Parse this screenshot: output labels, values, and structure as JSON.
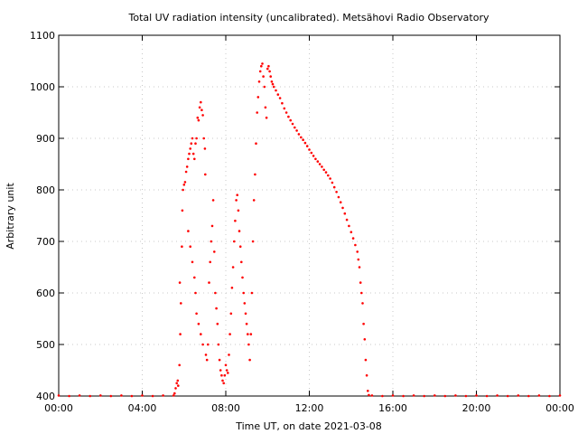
{
  "chart_data": {
    "type": "scatter",
    "title": "Total UV radiation intensity (uncalibrated). Metsähovi Radio Observatory",
    "xlabel": "Time UT, on date 2021-03-08",
    "ylabel": "Arbitrary unit",
    "xlim": [
      0,
      24
    ],
    "ylim": [
      400,
      1100
    ],
    "x_ticks": [
      {
        "value": 0,
        "label": "00:00"
      },
      {
        "value": 4,
        "label": "04:00"
      },
      {
        "value": 8,
        "label": "08:00"
      },
      {
        "value": 12,
        "label": "12:00"
      },
      {
        "value": 16,
        "label": "16:00"
      },
      {
        "value": 20,
        "label": "20:00"
      },
      {
        "value": 24,
        "label": "00:00"
      }
    ],
    "y_ticks": [
      {
        "value": 400,
        "label": "400"
      },
      {
        "value": 500,
        "label": "500"
      },
      {
        "value": 600,
        "label": "600"
      },
      {
        "value": 700,
        "label": "700"
      },
      {
        "value": 800,
        "label": "800"
      },
      {
        "value": 900,
        "label": "900"
      },
      {
        "value": 1000,
        "label": "1000"
      },
      {
        "value": 1100,
        "label": "1100"
      }
    ],
    "grid": true,
    "marker_color": "#ff0000",
    "series": [
      {
        "x_unit": "hours UT",
        "points": [
          [
            0.0,
            401
          ],
          [
            0.5,
            400
          ],
          [
            1.0,
            401
          ],
          [
            1.5,
            400
          ],
          [
            2.0,
            401
          ],
          [
            2.5,
            400
          ],
          [
            3.0,
            401
          ],
          [
            3.5,
            400
          ],
          [
            4.0,
            401
          ],
          [
            4.5,
            400
          ],
          [
            5.0,
            401
          ],
          [
            5.5,
            401
          ],
          [
            5.55,
            405
          ],
          [
            5.6,
            415
          ],
          [
            5.65,
            425
          ],
          [
            5.7,
            430
          ],
          [
            5.72,
            420
          ],
          [
            5.78,
            460
          ],
          [
            5.8,
            620
          ],
          [
            5.82,
            520
          ],
          [
            5.85,
            580
          ],
          [
            5.9,
            690
          ],
          [
            5.92,
            760
          ],
          [
            5.95,
            800
          ],
          [
            6.0,
            810
          ],
          [
            6.05,
            815
          ],
          [
            6.1,
            835
          ],
          [
            6.15,
            845
          ],
          [
            6.2,
            860
          ],
          [
            6.25,
            870
          ],
          [
            6.3,
            880
          ],
          [
            6.35,
            890
          ],
          [
            6.4,
            900
          ],
          [
            6.45,
            870
          ],
          [
            6.5,
            860
          ],
          [
            6.55,
            890
          ],
          [
            6.6,
            900
          ],
          [
            6.65,
            940
          ],
          [
            6.7,
            935
          ],
          [
            6.75,
            960
          ],
          [
            6.8,
            970
          ],
          [
            6.85,
            955
          ],
          [
            6.9,
            945
          ],
          [
            6.95,
            900
          ],
          [
            7.0,
            880
          ],
          [
            7.02,
            830
          ],
          [
            6.2,
            720
          ],
          [
            6.3,
            690
          ],
          [
            6.4,
            660
          ],
          [
            6.5,
            630
          ],
          [
            6.55,
            600
          ],
          [
            6.6,
            560
          ],
          [
            6.7,
            540
          ],
          [
            6.8,
            520
          ],
          [
            6.9,
            500
          ],
          [
            7.05,
            480
          ],
          [
            7.1,
            470
          ],
          [
            7.15,
            500
          ],
          [
            7.2,
            620
          ],
          [
            7.25,
            660
          ],
          [
            7.3,
            700
          ],
          [
            7.35,
            730
          ],
          [
            7.4,
            780
          ],
          [
            7.45,
            680
          ],
          [
            7.5,
            600
          ],
          [
            7.55,
            570
          ],
          [
            7.6,
            540
          ],
          [
            7.65,
            500
          ],
          [
            7.7,
            470
          ],
          [
            7.75,
            450
          ],
          [
            7.8,
            440
          ],
          [
            7.85,
            430
          ],
          [
            7.9,
            425
          ],
          [
            7.95,
            440
          ],
          [
            8.0,
            460
          ],
          [
            8.05,
            450
          ],
          [
            8.1,
            445
          ],
          [
            8.15,
            480
          ],
          [
            8.2,
            520
          ],
          [
            8.25,
            560
          ],
          [
            8.3,
            610
          ],
          [
            8.35,
            650
          ],
          [
            8.4,
            700
          ],
          [
            8.45,
            740
          ],
          [
            8.5,
            780
          ],
          [
            8.55,
            790
          ],
          [
            8.6,
            760
          ],
          [
            8.65,
            720
          ],
          [
            8.7,
            690
          ],
          [
            8.75,
            660
          ],
          [
            8.8,
            630
          ],
          [
            8.85,
            600
          ],
          [
            8.9,
            580
          ],
          [
            8.95,
            560
          ],
          [
            9.0,
            540
          ],
          [
            9.05,
            520
          ],
          [
            9.1,
            500
          ],
          [
            9.15,
            470
          ],
          [
            9.2,
            520
          ],
          [
            9.25,
            600
          ],
          [
            9.3,
            700
          ],
          [
            9.35,
            780
          ],
          [
            9.4,
            830
          ],
          [
            9.45,
            890
          ],
          [
            9.5,
            950
          ],
          [
            9.55,
            980
          ],
          [
            9.6,
            1010
          ],
          [
            9.65,
            1030
          ],
          [
            9.7,
            1040
          ],
          [
            9.75,
            1045
          ],
          [
            9.8,
            1020
          ],
          [
            9.85,
            1000
          ],
          [
            9.9,
            960
          ],
          [
            9.95,
            940
          ],
          [
            10.0,
            1035
          ],
          [
            10.05,
            1040
          ],
          [
            10.1,
            1030
          ],
          [
            10.15,
            1020
          ],
          [
            10.2,
            1010
          ],
          [
            10.25,
            1005
          ],
          [
            10.3,
            1000
          ],
          [
            10.4,
            993
          ],
          [
            10.5,
            985
          ],
          [
            10.6,
            978
          ],
          [
            10.7,
            968
          ],
          [
            10.8,
            958
          ],
          [
            10.9,
            950
          ],
          [
            11.0,
            942
          ],
          [
            11.1,
            935
          ],
          [
            11.2,
            928
          ],
          [
            11.3,
            921
          ],
          [
            11.4,
            915
          ],
          [
            11.5,
            908
          ],
          [
            11.6,
            902
          ],
          [
            11.7,
            897
          ],
          [
            11.8,
            891
          ],
          [
            11.9,
            885
          ],
          [
            12.0,
            878
          ],
          [
            12.1,
            872
          ],
          [
            12.2,
            866
          ],
          [
            12.3,
            860
          ],
          [
            12.4,
            855
          ],
          [
            12.5,
            850
          ],
          [
            12.6,
            845
          ],
          [
            12.7,
            839
          ],
          [
            12.8,
            834
          ],
          [
            12.9,
            828
          ],
          [
            13.0,
            822
          ],
          [
            13.1,
            814
          ],
          [
            13.2,
            805
          ],
          [
            13.3,
            796
          ],
          [
            13.4,
            786
          ],
          [
            13.5,
            776
          ],
          [
            13.6,
            765
          ],
          [
            13.7,
            754
          ],
          [
            13.8,
            742
          ],
          [
            13.9,
            730
          ],
          [
            14.0,
            718
          ],
          [
            14.1,
            706
          ],
          [
            14.2,
            693
          ],
          [
            14.3,
            680
          ],
          [
            14.35,
            665
          ],
          [
            14.4,
            650
          ],
          [
            14.45,
            620
          ],
          [
            14.5,
            600
          ],
          [
            14.55,
            580
          ],
          [
            14.6,
            540
          ],
          [
            14.65,
            510
          ],
          [
            14.7,
            470
          ],
          [
            14.75,
            440
          ],
          [
            14.8,
            410
          ],
          [
            14.85,
            402
          ],
          [
            15.0,
            401
          ],
          [
            15.5,
            400
          ],
          [
            16.0,
            401
          ],
          [
            16.5,
            400
          ],
          [
            17.0,
            401
          ],
          [
            17.5,
            400
          ],
          [
            18.0,
            401
          ],
          [
            18.5,
            400
          ],
          [
            19.0,
            401
          ],
          [
            19.5,
            400
          ],
          [
            20.0,
            401
          ],
          [
            20.5,
            400
          ],
          [
            21.0,
            401
          ],
          [
            21.5,
            400
          ],
          [
            22.0,
            401
          ],
          [
            22.5,
            400
          ],
          [
            23.0,
            401
          ],
          [
            23.5,
            400
          ],
          [
            24.0,
            401
          ]
        ]
      }
    ]
  }
}
